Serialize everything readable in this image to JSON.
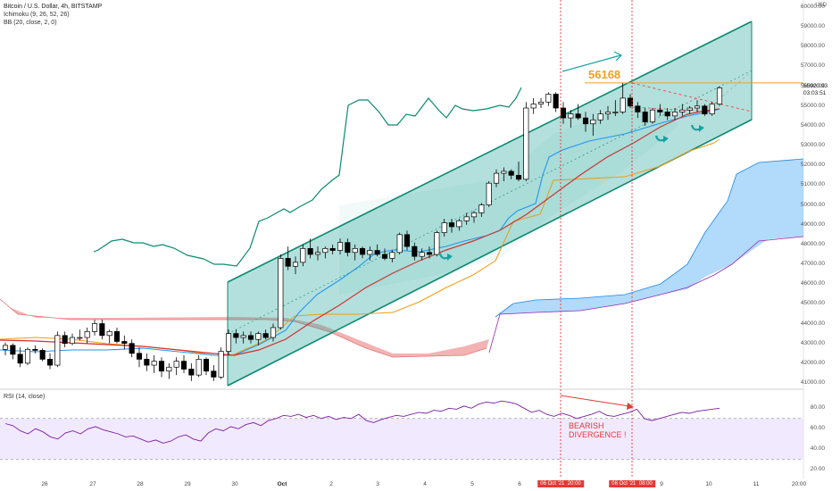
{
  "header": {
    "symbol": "Bitcoin / U.S. Dollar, 4h, BITSTAMP",
    "ichimoku": "Ichimoku (9, 26, 52, 26)",
    "bb": "BB (20, close, 2, 0)",
    "rsi": "RSI (14, close)",
    "usd": "USD"
  },
  "current_price": {
    "value": "55920.93",
    "countdown": "03:03:51"
  },
  "annotations": {
    "level": "56168",
    "bearish_line1": "BEARISH",
    "bearish_line2": "DIVERGENCE !"
  },
  "price_axis": [
    "60000.00",
    "59000.00",
    "58000.00",
    "57000.00",
    "56000.00",
    "55000.00",
    "54000.00",
    "53000.00",
    "52000.00",
    "51000.00",
    "50000.00",
    "49000.00",
    "48000.00",
    "47000.00",
    "46000.00",
    "45000.00",
    "44000.00",
    "43000.00",
    "42000.00",
    "41000.00"
  ],
  "rsi_axis": [
    "80.00",
    "60.00",
    "40.00",
    "20.00"
  ],
  "date_axis": [
    "26",
    "27",
    "28",
    "29",
    "30",
    "Oct",
    "2",
    "3",
    "4",
    "5",
    "6",
    "9",
    "10",
    "11",
    "20:00"
  ],
  "date_flags": [
    "06 Oct '21",
    "20:00",
    "08 Oct '21",
    "08:00"
  ],
  "colors": {
    "channel_fill": "#26a69a",
    "channel_line": "#0a8a70",
    "kumo_bull": "#90caf9",
    "kumo_bear": "#ef9a9a",
    "tenkan": "#2196f3",
    "kijun": "#d32f2f",
    "chikou": "#0a8a70",
    "senkou_a_line": "#e57373",
    "bb_basis": "#f39c12",
    "rsi_line": "#7b1fa2",
    "rsi_band": "#e8dcff",
    "level_line": "#f0a020",
    "vline": "#e53935"
  },
  "chart_data": {
    "type": "candlestick",
    "title": "Bitcoin / U.S. Dollar, 4h, BITSTAMP",
    "ylim": [
      40700,
      60200
    ],
    "key_level": 56168,
    "current_price": 55920.93,
    "candles": [
      [
        42700,
        43050,
        42400,
        42900
      ],
      [
        42900,
        43000,
        42200,
        42450
      ],
      [
        42450,
        42800,
        41800,
        42000
      ],
      [
        42000,
        42800,
        41900,
        42700
      ],
      [
        42700,
        42900,
        42500,
        42650
      ],
      [
        42650,
        42750,
        42100,
        42200
      ],
      [
        42200,
        42500,
        41700,
        41900
      ],
      [
        41900,
        43600,
        41800,
        43400
      ],
      [
        43400,
        43600,
        42800,
        43000
      ],
      [
        43000,
        43500,
        42900,
        43300
      ],
      [
        43300,
        43700,
        43150,
        43300
      ],
      [
        43300,
        43800,
        43000,
        43600
      ],
      [
        43600,
        44200,
        43400,
        44000
      ],
      [
        44000,
        44200,
        43200,
        43400
      ],
      [
        43400,
        43700,
        43000,
        43600
      ],
      [
        43600,
        43800,
        43000,
        43100
      ],
      [
        43100,
        43400,
        42700,
        43000
      ],
      [
        43000,
        43200,
        42300,
        42500
      ],
      [
        42500,
        42800,
        41800,
        42200
      ],
      [
        42200,
        42500,
        41600,
        41900
      ],
      [
        41900,
        42400,
        41500,
        42100
      ],
      [
        42100,
        42300,
        41300,
        41600
      ],
      [
        41600,
        42000,
        41200,
        41800
      ],
      [
        41800,
        42300,
        41400,
        42100
      ],
      [
        42100,
        42400,
        41500,
        41700
      ],
      [
        41700,
        42000,
        41100,
        41400
      ],
      [
        41400,
        42400,
        41300,
        42200
      ],
      [
        42200,
        42300,
        41400,
        41600
      ],
      [
        41600,
        41900,
        41100,
        41300
      ],
      [
        41300,
        42800,
        41200,
        42600
      ],
      [
        42600,
        43700,
        42400,
        43500
      ],
      [
        43500,
        43700,
        43000,
        43300
      ],
      [
        43300,
        43600,
        43000,
        43400
      ],
      [
        43400,
        43600,
        43000,
        43200
      ],
      [
        43200,
        43600,
        42900,
        43500
      ],
      [
        43500,
        43700,
        43200,
        43300
      ],
      [
        43300,
        44000,
        43100,
        43800
      ],
      [
        43800,
        47500,
        43700,
        47300
      ],
      [
        47300,
        47900,
        46700,
        46900
      ],
      [
        46900,
        47400,
        46500,
        47100
      ],
      [
        47100,
        48000,
        46900,
        47800
      ],
      [
        47800,
        48300,
        47300,
        47500
      ],
      [
        47500,
        47900,
        47200,
        47600
      ],
      [
        47600,
        47900,
        47300,
        47800
      ],
      [
        47800,
        48000,
        47500,
        47700
      ],
      [
        47700,
        48300,
        47500,
        48100
      ],
      [
        48100,
        48300,
        47400,
        47600
      ],
      [
        47600,
        48000,
        47200,
        47800
      ],
      [
        47800,
        47900,
        47300,
        47500
      ],
      [
        47500,
        47900,
        47200,
        47700
      ],
      [
        47700,
        48000,
        47400,
        47500
      ],
      [
        47500,
        47800,
        47200,
        47300
      ],
      [
        47300,
        47700,
        47100,
        47600
      ],
      [
        47600,
        48600,
        47500,
        48500
      ],
      [
        48500,
        48700,
        47700,
        47900
      ],
      [
        47900,
        48100,
        47200,
        47400
      ],
      [
        47400,
        47800,
        47200,
        47600
      ],
      [
        47600,
        47900,
        47300,
        47500
      ],
      [
        47500,
        48700,
        47400,
        48600
      ],
      [
        48600,
        49300,
        48400,
        49100
      ],
      [
        49100,
        49300,
        48600,
        48900
      ],
      [
        48900,
        49300,
        48700,
        49200
      ],
      [
        49200,
        49600,
        49000,
        49400
      ],
      [
        49400,
        49700,
        49100,
        49600
      ],
      [
        49600,
        50100,
        49400,
        50000
      ],
      [
        50000,
        51200,
        49900,
        51100
      ],
      [
        51100,
        51800,
        50900,
        51600
      ],
      [
        51600,
        51900,
        51200,
        51700
      ],
      [
        51700,
        51800,
        51300,
        51500
      ],
      [
        51500,
        52200,
        51200,
        51300
      ],
      [
        51300,
        55200,
        51200,
        54900
      ],
      [
        54900,
        55400,
        54600,
        55100
      ],
      [
        55100,
        55400,
        54900,
        55200
      ],
      [
        55200,
        55700,
        55000,
        55600
      ],
      [
        55600,
        55700,
        54700,
        54900
      ],
      [
        54900,
        55200,
        54100,
        54400
      ],
      [
        54400,
        54800,
        53900,
        54600
      ],
      [
        54600,
        55100,
        54300,
        54400
      ],
      [
        54400,
        54700,
        53700,
        54100
      ],
      [
        54100,
        54600,
        53500,
        54300
      ],
      [
        54300,
        54800,
        54100,
        54600
      ],
      [
        54600,
        55000,
        54300,
        54700
      ],
      [
        54700,
        55300,
        54500,
        54700
      ],
      [
        54700,
        56168,
        54600,
        55400
      ],
      [
        55400,
        55600,
        54900,
        55000
      ],
      [
        55000,
        55200,
        54400,
        54700
      ],
      [
        54700,
        54900,
        54000,
        54200
      ],
      [
        54200,
        54900,
        54100,
        54800
      ],
      [
        54800,
        55100,
        54500,
        54700
      ],
      [
        54700,
        54900,
        54300,
        54500
      ],
      [
        54500,
        54900,
        54300,
        54700
      ],
      [
        54700,
        55100,
        54500,
        54800
      ],
      [
        54800,
        55000,
        54600,
        54900
      ],
      [
        54900,
        55300,
        54700,
        55000
      ],
      [
        55000,
        55100,
        54500,
        54600
      ],
      [
        54600,
        55200,
        54500,
        55100
      ],
      [
        55100,
        56000,
        55000,
        55921
      ]
    ],
    "rsi": [
      65,
      63,
      58,
      55,
      60,
      57,
      52,
      50,
      56,
      58,
      55,
      60,
      62,
      59,
      57,
      55,
      52,
      53,
      50,
      47,
      49,
      46,
      48,
      52,
      54,
      50,
      48,
      56,
      60,
      58,
      62,
      60,
      64,
      66,
      63,
      68,
      70,
      73,
      72,
      74,
      71,
      73,
      70,
      72,
      69,
      71,
      70,
      74,
      68,
      66,
      69,
      71,
      73,
      72,
      74,
      76,
      75,
      78,
      77,
      80,
      79,
      82,
      80,
      84,
      86,
      85,
      87,
      86,
      84,
      80,
      76,
      78,
      74,
      72,
      75,
      73,
      70,
      72,
      74,
      77,
      73,
      72,
      74,
      76,
      79,
      70,
      68,
      70,
      72,
      74,
      76,
      75,
      77,
      78,
      79,
      80
    ],
    "rsi_ylim": [
      15,
      95
    ]
  }
}
